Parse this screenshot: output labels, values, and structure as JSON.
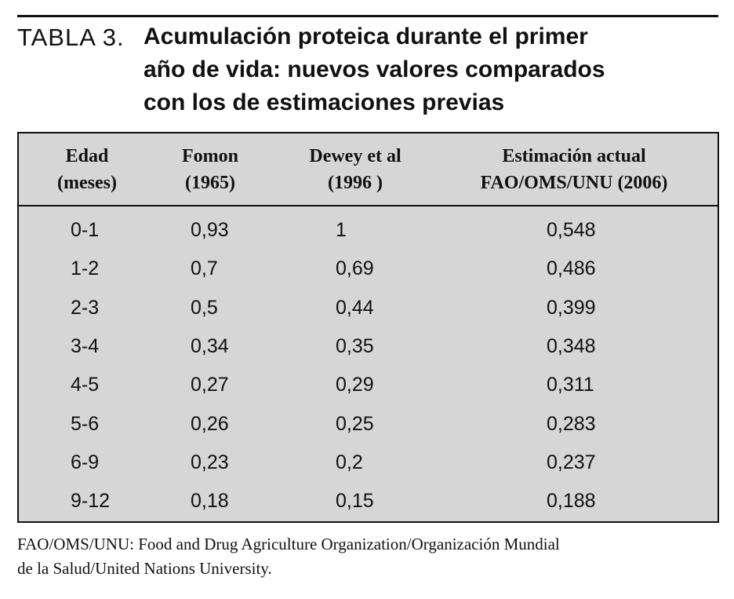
{
  "header": {
    "label": "TABLA 3.",
    "title_lines": [
      "Acumulación proteica durante el primer",
      "año de vida: nuevos valores comparados",
      "con los de estimaciones previas"
    ]
  },
  "table": {
    "columns": [
      [
        "Edad",
        "(meses)"
      ],
      [
        "Fomon",
        "(1965)"
      ],
      [
        "Dewey et al",
        "(1996 )"
      ],
      [
        "Estimación actual",
        "FAO/OMS/UNU (2006)"
      ]
    ],
    "rows": [
      [
        "0-1",
        "0,93",
        "1",
        "0,548"
      ],
      [
        "1-2",
        "0,7",
        "0,69",
        "0,486"
      ],
      [
        "2-3",
        "0,5",
        "0,44",
        "0,399"
      ],
      [
        "3-4",
        "0,34",
        "0,35",
        "0,348"
      ],
      [
        "4-5",
        "0,27",
        "0,29",
        "0,311"
      ],
      [
        "5-6",
        "0,26",
        "0,25",
        "0,283"
      ],
      [
        "6-9",
        "0,23",
        "0,2",
        "0,237"
      ],
      [
        "9-12",
        "0,18",
        "0,15",
        "0,188"
      ]
    ]
  },
  "footnote": [
    "FAO/OMS/UNU: Food and Drug Agriculture Organization/Organización Mundial",
    "de la Salud/United Nations University."
  ]
}
